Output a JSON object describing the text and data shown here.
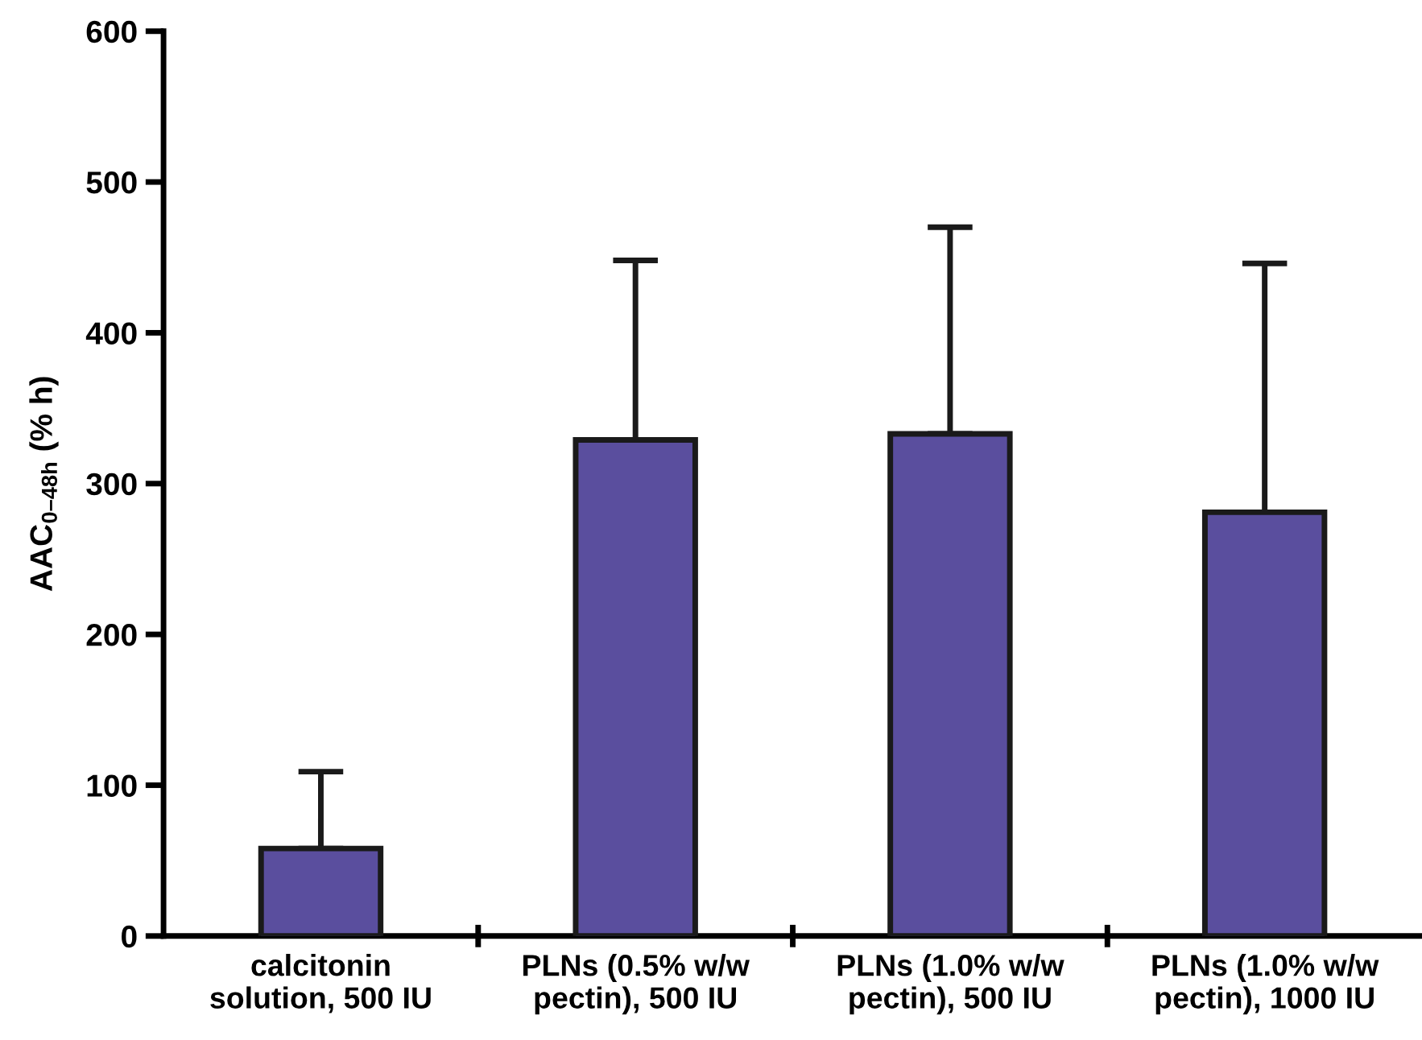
{
  "chart_data": {
    "type": "bar",
    "ylabel": "AAC$_{0–48h}$ (% h)",
    "categories": [
      "calcitonin\nsolution, 500 IU",
      "PLNs (0.5% w/w\npectin), 500 IU",
      "PLNs (1.0% w/w\npectin), 500 IU",
      "PLNs (1.0% w/w\npectin), 1000 IU"
    ],
    "values": [
      58,
      329,
      333,
      281
    ],
    "errors": [
      [
        58,
        109
      ],
      [
        329,
        448
      ],
      [
        333,
        470
      ],
      [
        281,
        446
      ]
    ],
    "color": "#5a4e9e",
    "ylim": [
      0,
      600
    ],
    "yticks": [
      0,
      100,
      200,
      300,
      400,
      500,
      600
    ],
    "grid": false
  }
}
